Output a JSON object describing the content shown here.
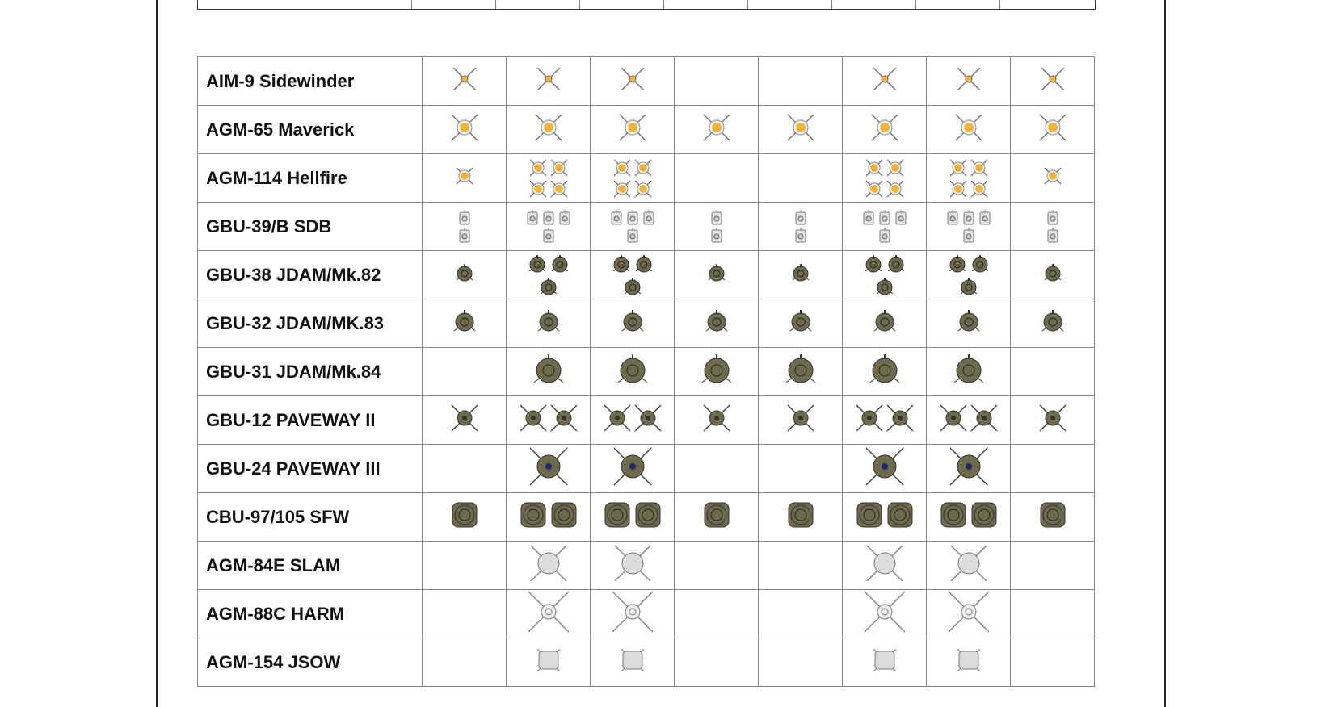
{
  "columns": 8,
  "colors": {
    "missile_orange": "#f5b23a",
    "bomb_olive": "#6e6a4c",
    "light_grey": "#dcdcdc",
    "frame": "#222222"
  },
  "rows": [
    {
      "name": "AIM-9 Sidewinder",
      "icon": "small-orange-cross-icon",
      "counts": [
        1,
        1,
        1,
        0,
        0,
        1,
        1,
        1
      ]
    },
    {
      "name": "AGM-65 Maverick",
      "icon": "orange-cross-icon",
      "counts": [
        1,
        1,
        1,
        1,
        1,
        1,
        1,
        1
      ]
    },
    {
      "name": "AGM-114 Hellfire",
      "icon": "small-orange-disc-icon",
      "counts": [
        1,
        4,
        4,
        0,
        0,
        4,
        4,
        1
      ]
    },
    {
      "name": "GBU-39/B SDB",
      "icon": "sdb-icon",
      "counts": [
        2,
        4,
        4,
        2,
        2,
        4,
        4,
        2
      ]
    },
    {
      "name": "GBU-38 JDAM/Mk.82",
      "icon": "olive-small-bomb-icon",
      "counts": [
        1,
        3,
        3,
        1,
        1,
        3,
        3,
        1
      ]
    },
    {
      "name": "GBU-32 JDAM/MK.83",
      "icon": "olive-medium-bomb-icon",
      "counts": [
        1,
        1,
        1,
        1,
        1,
        1,
        1,
        1
      ]
    },
    {
      "name": "GBU-31 JDAM/Mk.84",
      "icon": "olive-large-bomb-icon",
      "counts": [
        0,
        1,
        1,
        1,
        1,
        1,
        1,
        0
      ]
    },
    {
      "name": "GBU-12 PAVEWAY II",
      "icon": "paveway-small-icon",
      "counts": [
        1,
        2,
        2,
        1,
        1,
        2,
        2,
        1
      ]
    },
    {
      "name": "GBU-24 PAVEWAY III",
      "icon": "paveway-large-icon",
      "counts": [
        0,
        1,
        1,
        0,
        0,
        1,
        1,
        0
      ]
    },
    {
      "name": "CBU-97/105 SFW",
      "icon": "sfw-icon",
      "counts": [
        1,
        2,
        2,
        1,
        1,
        2,
        2,
        1
      ]
    },
    {
      "name": "AGM-84E SLAM",
      "icon": "slam-icon",
      "counts": [
        0,
        1,
        1,
        0,
        0,
        1,
        1,
        0
      ]
    },
    {
      "name": "AGM-88C HARM",
      "icon": "harm-icon",
      "counts": [
        0,
        1,
        1,
        0,
        0,
        1,
        1,
        0
      ]
    },
    {
      "name": "AGM-154 JSOW",
      "icon": "jsow-icon",
      "counts": [
        0,
        1,
        1,
        0,
        0,
        1,
        1,
        0
      ]
    }
  ]
}
